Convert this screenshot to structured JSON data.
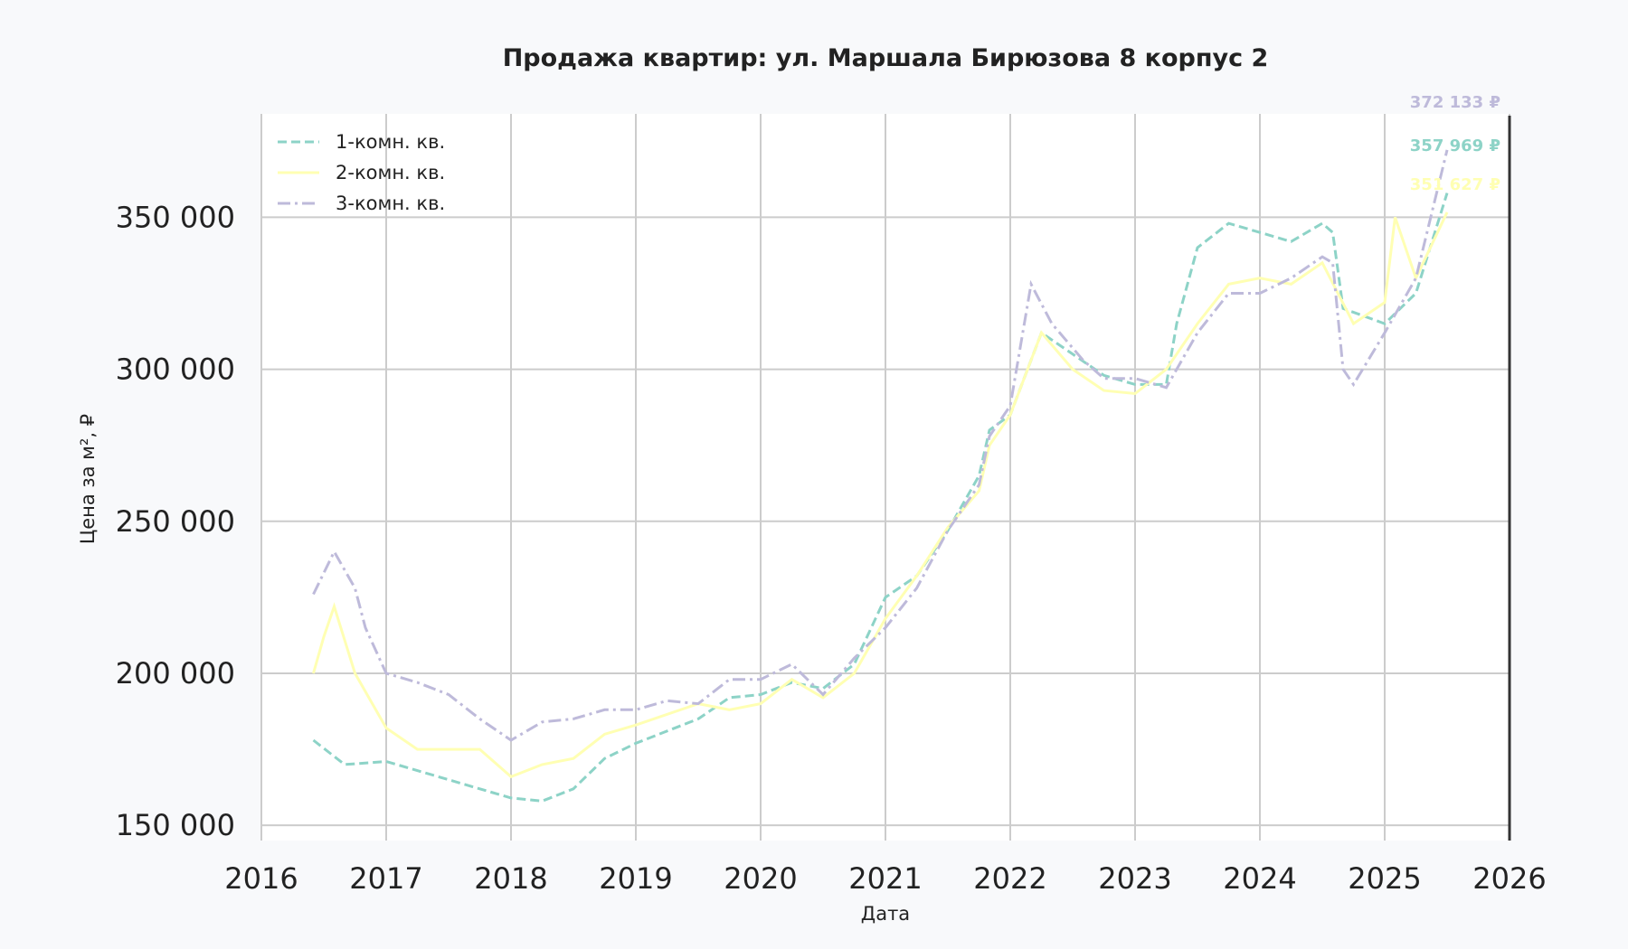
{
  "chart_data": {
    "type": "line",
    "title": "Продажа квартир: ул. Маршала Бирюзова 8 корпус 2",
    "xlabel": "Дата",
    "ylabel": "Цена за м², ₽",
    "xlim": [
      "2016-01",
      "2026-01"
    ],
    "ylim": [
      145000,
      384000
    ],
    "x_ticks": [
      "2016",
      "2017",
      "2018",
      "2019",
      "2020",
      "2021",
      "2022",
      "2023",
      "2024",
      "2025",
      "2026"
    ],
    "y_ticks": [
      150000,
      200000,
      250000,
      300000,
      350000
    ],
    "y_tick_labels": [
      "150 000",
      "200 000",
      "250 000",
      "300 000",
      "350 000"
    ],
    "grid": true,
    "legend_position": "top-left",
    "series": [
      {
        "name": "1-комн. кв.",
        "color": "#8dd3c7",
        "dash": "dashed",
        "x": [
          "2016-06",
          "2016-09",
          "2017-01",
          "2017-07",
          "2017-10",
          "2018-01",
          "2018-04",
          "2018-07",
          "2018-10",
          "2019-01",
          "2019-07",
          "2019-10",
          "2020-01",
          "2020-04",
          "2020-07",
          "2020-10",
          "2021-01",
          "2021-04",
          "2021-07",
          "2021-10",
          "2021-11",
          "2022-01",
          "2022-04",
          "2022-07",
          "2022-10",
          "2023-01",
          "2023-04",
          "2023-05",
          "2023-07",
          "2023-10",
          "2024-01",
          "2024-04",
          "2024-07",
          "2024-08",
          "2024-09",
          "2025-01",
          "2025-04",
          "2025-07"
        ],
        "y": [
          178000,
          170000,
          171000,
          165000,
          162000,
          159000,
          158000,
          162000,
          172000,
          177000,
          185000,
          192000,
          193000,
          197000,
          195000,
          203000,
          225000,
          232000,
          247000,
          265000,
          280000,
          285000,
          312000,
          305000,
          298000,
          295000,
          295000,
          315000,
          340000,
          348000,
          345000,
          342000,
          348000,
          345000,
          320000,
          315000,
          325000,
          357969
        ]
      },
      {
        "name": "2-комн. кв.",
        "color": "#ffffb3",
        "dash": "solid",
        "x": [
          "2016-06",
          "2016-07",
          "2016-08",
          "2016-10",
          "2017-01",
          "2017-04",
          "2017-07",
          "2017-10",
          "2018-01",
          "2018-04",
          "2018-07",
          "2018-10",
          "2019-01",
          "2019-07",
          "2019-10",
          "2020-01",
          "2020-04",
          "2020-07",
          "2020-10",
          "2021-01",
          "2021-04",
          "2021-07",
          "2021-10",
          "2021-11",
          "2022-01",
          "2022-04",
          "2022-07",
          "2022-10",
          "2023-01",
          "2023-04",
          "2023-07",
          "2023-10",
          "2024-01",
          "2024-04",
          "2024-07",
          "2024-10",
          "2025-01",
          "2025-02",
          "2025-04",
          "2025-07"
        ],
        "y": [
          200000,
          212000,
          222000,
          200000,
          182000,
          175000,
          175000,
          175000,
          166000,
          170000,
          172000,
          180000,
          183000,
          190000,
          188000,
          190000,
          198000,
          192000,
          200000,
          218000,
          232000,
          248000,
          260000,
          275000,
          285000,
          312000,
          300000,
          293000,
          292000,
          300000,
          315000,
          328000,
          330000,
          328000,
          335000,
          315000,
          322000,
          350000,
          330000,
          351627
        ]
      },
      {
        "name": "3-комн. кв.",
        "color": "#bebada",
        "dash": "dashdot",
        "x": [
          "2016-06",
          "2016-08",
          "2016-10",
          "2016-11",
          "2017-01",
          "2017-04",
          "2017-07",
          "2017-10",
          "2018-01",
          "2018-04",
          "2018-07",
          "2018-10",
          "2019-01",
          "2019-04",
          "2019-07",
          "2019-10",
          "2020-01",
          "2020-04",
          "2020-07",
          "2020-10",
          "2021-01",
          "2021-04",
          "2021-07",
          "2021-10",
          "2021-11",
          "2022-01",
          "2022-03",
          "2022-05",
          "2022-08",
          "2022-10",
          "2023-01",
          "2023-04",
          "2023-07",
          "2023-10",
          "2024-01",
          "2024-04",
          "2024-07",
          "2024-08",
          "2024-09",
          "2024-10",
          "2025-01",
          "2025-04",
          "2025-07"
        ],
        "y": [
          226000,
          240000,
          228000,
          215000,
          200000,
          197000,
          193000,
          185000,
          178000,
          184000,
          185000,
          188000,
          188000,
          191000,
          190000,
          198000,
          198000,
          203000,
          193000,
          205000,
          215000,
          228000,
          247000,
          262000,
          278000,
          288000,
          328000,
          315000,
          303000,
          297000,
          297000,
          294000,
          312000,
          325000,
          325000,
          330000,
          337000,
          335000,
          300000,
          295000,
          312000,
          330000,
          372133
        ]
      }
    ],
    "annotations": [
      {
        "text": "372 133 ₽",
        "color": "#bebada"
      },
      {
        "text": "357 969 ₽",
        "color": "#8dd3c7"
      },
      {
        "text": "351 627 ₽",
        "color": "#ffffb3"
      }
    ]
  }
}
